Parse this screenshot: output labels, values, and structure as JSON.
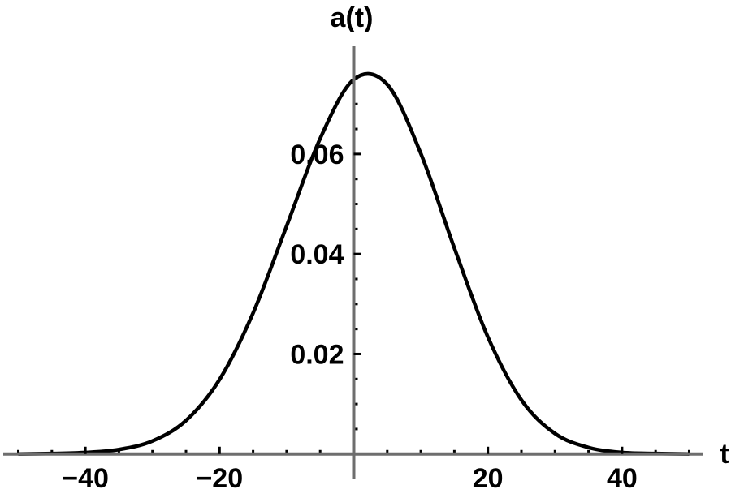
{
  "chart_data": {
    "type": "line",
    "xlabel": "t",
    "ylabel": "a(t)",
    "xlim": [
      -52,
      52
    ],
    "ylim": [
      -0.0002,
      0.0775
    ],
    "x_ticks": [
      -40,
      -20,
      20,
      40
    ],
    "x_tick_labels": [
      "−40",
      "−20",
      "20",
      "40"
    ],
    "y_ticks": [
      0.02,
      0.04,
      0.06
    ],
    "y_tick_labels": [
      "0.02",
      "0.04",
      "0.06"
    ],
    "grid": false,
    "axes_origin": [
      0,
      0
    ],
    "colors": {
      "curve": "#000000",
      "axis": "#6e6e6e"
    },
    "series": [
      {
        "x": [
          -50,
          -45,
          -40,
          -35,
          -30,
          -25,
          -20,
          -15,
          -10,
          -5,
          0,
          5,
          10,
          15,
          20,
          25,
          30,
          35,
          40,
          45,
          50
        ],
        "y": [
          0.0,
          0.0001,
          0.0003,
          0.0009,
          0.0026,
          0.0067,
          0.0149,
          0.0282,
          0.0456,
          0.0631,
          0.0749,
          0.0739,
          0.0601,
          0.0412,
          0.0234,
          0.0108,
          0.0041,
          0.0013,
          0.0003,
          0.0001,
          0.0
        ]
      }
    ]
  }
}
